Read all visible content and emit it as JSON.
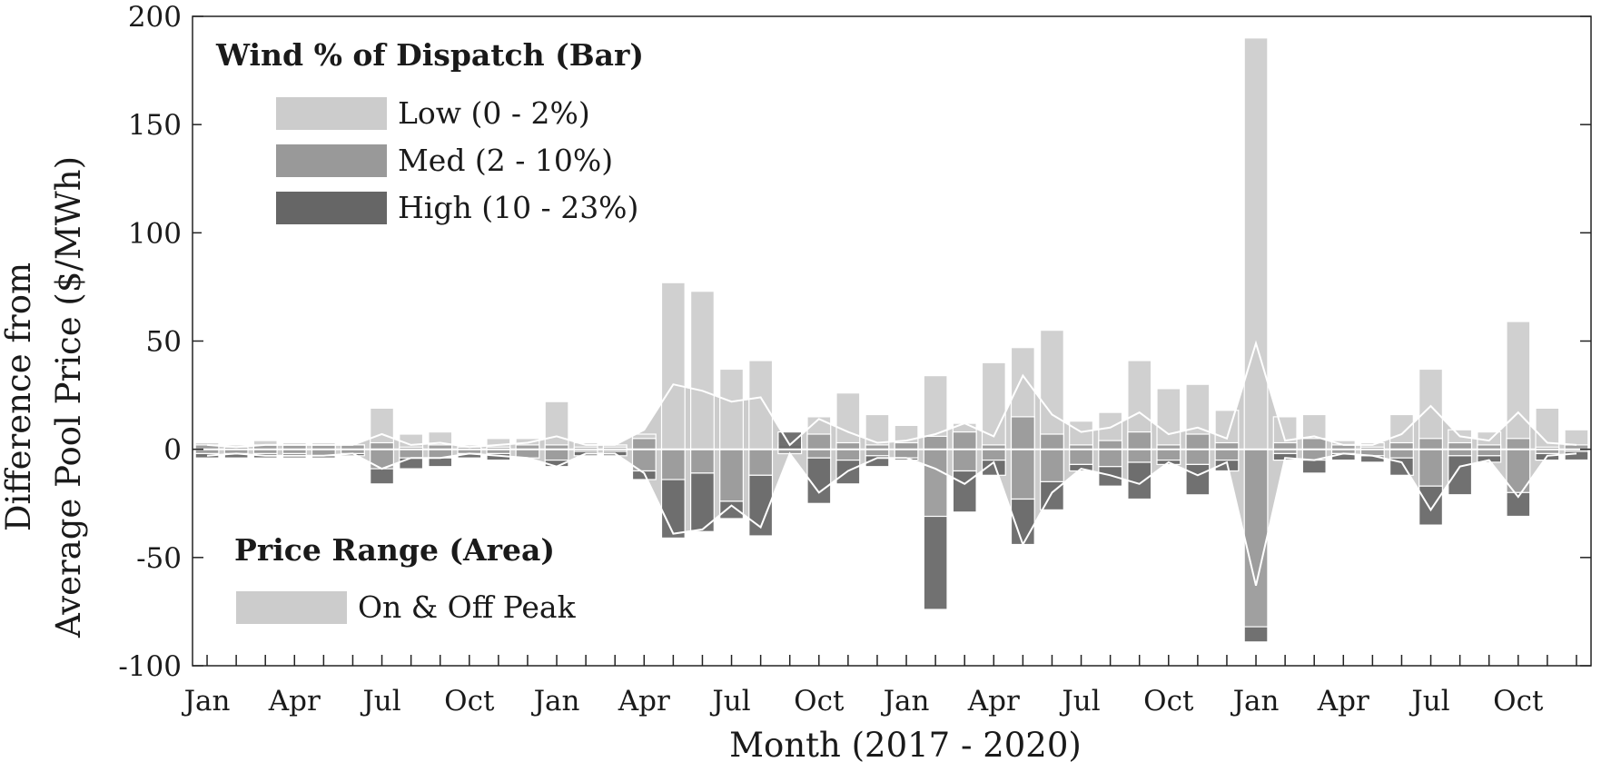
{
  "chart_data": {
    "type": "bar",
    "title": "",
    "xlabel": "Month (2017 - 2020)",
    "ylabel_line1": "Difference from",
    "ylabel_line2": "Average Pool Price ($/MWh)",
    "ylim": [
      -100,
      200
    ],
    "yticks": [
      -100,
      -50,
      0,
      50,
      100,
      150,
      200
    ],
    "ytick_labels": [
      "-100",
      "-50",
      "0",
      "50",
      "100",
      "150",
      "200"
    ],
    "xtick_labels": [
      "Jan",
      "Apr",
      "Jul",
      "Oct",
      "Jan",
      "Apr",
      "Jul",
      "Oct",
      "Jan",
      "Apr",
      "Jul",
      "Oct",
      "Jan",
      "Apr",
      "Jul",
      "Oct"
    ],
    "xtick_label_months": [
      1,
      4,
      7,
      10,
      13,
      16,
      19,
      22,
      25,
      28,
      31,
      34,
      37,
      40,
      43,
      46
    ],
    "months": [
      1,
      2,
      3,
      4,
      5,
      6,
      7,
      8,
      9,
      10,
      11,
      12,
      13,
      14,
      15,
      16,
      17,
      18,
      19,
      20,
      21,
      22,
      23,
      24,
      25,
      26,
      27,
      28,
      29,
      30,
      31,
      32,
      33,
      34,
      35,
      36,
      37,
      38,
      39,
      40,
      41,
      42,
      43,
      44,
      45,
      46,
      47,
      48
    ],
    "grid": false,
    "series": [
      {
        "name": "Low (0 - 2%)",
        "kind": "bar",
        "color": "#cccccc",
        "values": [
          3,
          2,
          4,
          3,
          3,
          2,
          19,
          7,
          8,
          2,
          5,
          5,
          22,
          3,
          2,
          7,
          77,
          73,
          37,
          41,
          3,
          15,
          26,
          16,
          11,
          34,
          12,
          40,
          47,
          55,
          13,
          17,
          41,
          28,
          30,
          18,
          190,
          15,
          16,
          4,
          3,
          16,
          37,
          9,
          8,
          59,
          19,
          9
        ]
      },
      {
        "name": "Med (2 - 10%)",
        "kind": "bar",
        "color": "#999999",
        "values_positive": [
          2,
          1,
          2,
          2,
          2,
          2,
          3,
          1,
          2,
          1,
          1,
          2,
          2,
          1,
          1,
          5,
          0,
          0,
          0,
          0,
          2,
          7,
          3,
          2,
          3,
          6,
          8,
          2,
          15,
          7,
          2,
          4,
          8,
          2,
          7,
          3,
          0,
          3,
          5,
          2,
          1,
          3,
          5,
          3,
          2,
          5,
          1,
          2
        ],
        "values_negative": [
          -2,
          -2,
          -2,
          -2,
          -3,
          -2,
          -9,
          -4,
          -4,
          -2,
          -2,
          -4,
          -5,
          -1,
          -1,
          -10,
          -14,
          -11,
          -24,
          -12,
          -2,
          -4,
          -5,
          -3,
          -4,
          -31,
          -10,
          -5,
          -23,
          -15,
          -7,
          -8,
          -6,
          -5,
          -7,
          -5,
          -82,
          -2,
          -5,
          -2,
          -3,
          -4,
          -17,
          -3,
          -3,
          -20,
          -2,
          -1
        ]
      },
      {
        "name": "High (10 - 23%)",
        "kind": "bar",
        "color": "#666666",
        "values": [
          -4,
          -4,
          -4,
          -4,
          -4,
          -3,
          -16,
          -9,
          -8,
          -4,
          -5,
          -4,
          -8,
          -3,
          -3,
          -14,
          -41,
          -38,
          -32,
          -40,
          8,
          -25,
          -16,
          -8,
          -5,
          -74,
          -29,
          -12,
          -44,
          -28,
          -10,
          -17,
          -23,
          -7,
          -21,
          -10,
          -89,
          -5,
          -11,
          -5,
          -6,
          -12,
          -35,
          -21,
          -6,
          -31,
          -5,
          -5
        ]
      },
      {
        "name": "On & Off Peak",
        "kind": "area",
        "color": "#cccccc",
        "upper": [
          2,
          1,
          2,
          2,
          2,
          2,
          7,
          2,
          3,
          1,
          2,
          3,
          6,
          2,
          2,
          9,
          30,
          27,
          22,
          24,
          2,
          14,
          8,
          3,
          4,
          7,
          12,
          6,
          34,
          16,
          8,
          10,
          17,
          7,
          10,
          5,
          49,
          4,
          6,
          2,
          2,
          7,
          20,
          6,
          4,
          17,
          3,
          2
        ],
        "lower": [
          -3,
          -2,
          -3,
          -3,
          -3,
          -2,
          -9,
          -4,
          -4,
          -2,
          -3,
          -4,
          -8,
          -2,
          -2,
          -11,
          -39,
          -37,
          -26,
          -36,
          -2,
          -20,
          -10,
          -4,
          -4,
          -9,
          -16,
          -6,
          -44,
          -20,
          -9,
          -12,
          -16,
          -6,
          -12,
          -6,
          -63,
          -4,
          -5,
          -2,
          -3,
          -6,
          -28,
          -8,
          -5,
          -22,
          -3,
          -2
        ]
      }
    ],
    "legend_bar": {
      "title": "Wind % of Dispatch (Bar)",
      "position": "top-left",
      "entries": [
        {
          "label": "Low (0 - 2%)",
          "color": "#cccccc"
        },
        {
          "label": "Med (2 - 10%)",
          "color": "#999999"
        },
        {
          "label": "High (10 - 23%)",
          "color": "#666666"
        }
      ]
    },
    "legend_area": {
      "title": "Price Range (Area)",
      "position": "bottom-left",
      "entries": [
        {
          "label": "On & Off Peak",
          "color": "#cccccc"
        }
      ]
    }
  }
}
